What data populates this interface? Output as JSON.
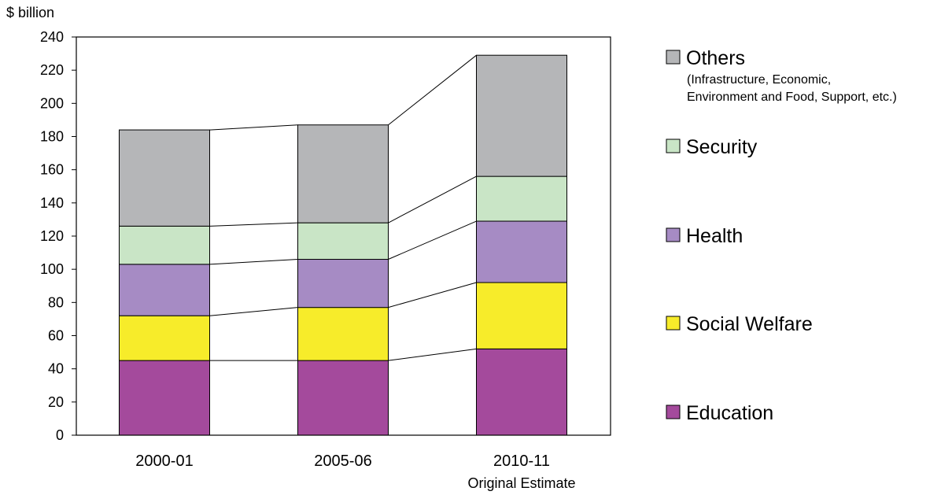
{
  "chart_data": {
    "type": "bar",
    "stacked": true,
    "title": "",
    "ylabel": "$ billion",
    "xlabel": "",
    "ylim": [
      0,
      240
    ],
    "yticks": [
      0,
      20,
      40,
      60,
      80,
      100,
      120,
      140,
      160,
      180,
      200,
      220,
      240
    ],
    "grid": false,
    "legend_placement": "right",
    "connector_lines": true,
    "categories": [
      "2000-01",
      "2005-06",
      "2010-11"
    ],
    "category_sublabels": [
      "",
      "",
      "Original Estimate"
    ],
    "series": [
      {
        "name": "Education",
        "color": "#a44a9c",
        "values": [
          45,
          45,
          52
        ]
      },
      {
        "name": "Social Welfare",
        "color": "#f7ec2a",
        "values": [
          27,
          32,
          40
        ]
      },
      {
        "name": "Health",
        "color": "#a68bc4",
        "values": [
          31,
          29,
          37
        ]
      },
      {
        "name": "Security",
        "color": "#c9e5c6",
        "values": [
          23,
          22,
          27
        ]
      },
      {
        "name": "Others",
        "color": "#b5b6b8",
        "values": [
          58,
          59,
          73
        ],
        "note_lines": [
          "(Infrastructure, Economic,",
          "Environment and Food, Support, etc.)"
        ]
      }
    ]
  }
}
